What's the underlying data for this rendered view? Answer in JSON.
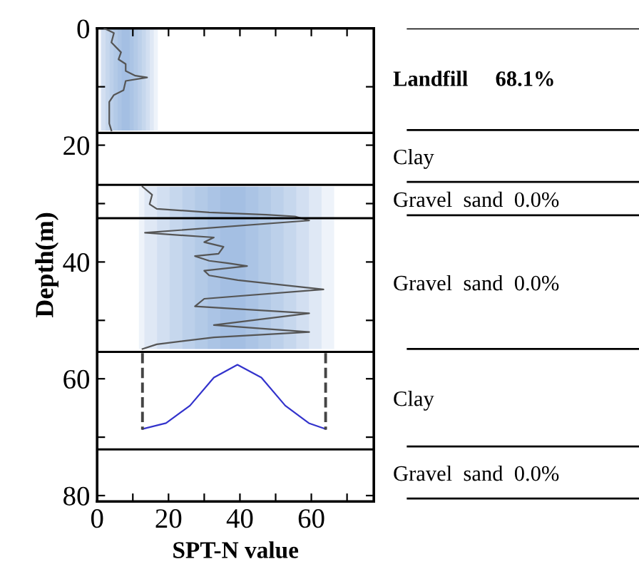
{
  "chart_data": {
    "type": "line",
    "xlabel": "SPT-N value",
    "ylabel": "Depth(m)",
    "xlim": [
      0,
      77.5
    ],
    "ylim": [
      81,
      0
    ],
    "xticks": [
      0,
      {
        "value": 10,
        "label": null
      },
      20,
      {
        "value": 30,
        "label": null
      },
      40,
      {
        "value": 50,
        "label": null
      },
      60,
      {
        "value": 70,
        "label": null
      }
    ],
    "yticks": [
      0,
      {
        "value": 10,
        "label": null
      },
      20,
      {
        "value": 30,
        "label": null
      },
      40,
      {
        "value": 50,
        "label": null
      },
      60,
      {
        "value": 70,
        "label": null
      },
      80
    ],
    "grid": false,
    "legend": false,
    "marker": "none",
    "series": [
      {
        "color": "#555555",
        "line_style": "solid",
        "x": [
          2,
          4.7,
          4,
          6.7,
          6,
          8,
          8,
          10.7,
          14,
          8,
          7.4,
          4.7,
          3.4,
          3.4,
          4
        ],
        "values": [
          0,
          0.8,
          2.4,
          4.1,
          5.3,
          6.1,
          7.3,
          8.1,
          8.4,
          9,
          10.6,
          11.4,
          12.6,
          16.3,
          17.5
        ]
      },
      {
        "color": "#555555",
        "line_style": "solid",
        "x": [
          12.7,
          15.4,
          14.7,
          16.7,
          31.4,
          47.4,
          55.4,
          59.4,
          13.4,
          32.7,
          30,
          35.4,
          34,
          27.4,
          31.4,
          36.7,
          42,
          30,
          31.4,
          39.4,
          63.4,
          30,
          27.4,
          59.4,
          32.7,
          59.4,
          32.7,
          16.7,
          12.7
        ],
        "values": [
          27.1,
          28.5,
          30.1,
          30.9,
          31.5,
          31.9,
          32.2,
          32.9,
          35,
          35.8,
          36.6,
          37.4,
          38.6,
          39,
          39.8,
          40.2,
          40.7,
          41.5,
          42.3,
          43.1,
          44.7,
          46.3,
          47.6,
          48.8,
          50.8,
          52,
          52.9,
          54.1,
          54.9
        ]
      },
      {
        "color": "#3333cc",
        "line_style": "solid",
        "x": [
          12.7,
          19.3,
          26,
          32.7,
          39.3,
          46,
          52.7,
          59.3,
          64
        ],
        "values": [
          68.6,
          67.6,
          64.6,
          59.8,
          57.6,
          59.8,
          64.6,
          67.6,
          68.6
        ]
      },
      {
        "color": "#444444",
        "line_style": "dashed",
        "x": [
          12.7,
          12.7
        ],
        "values": [
          55.6,
          68.7
        ]
      },
      {
        "color": "#444444",
        "line_style": "dashed",
        "x": [
          64,
          64
        ],
        "values": [
          55.6,
          68.7
        ]
      }
    ],
    "ref_lines": [
      {
        "axis": "y",
        "value": 17.9,
        "color": "#000000"
      },
      {
        "axis": "y",
        "value": 26.8,
        "color": "#000000"
      },
      {
        "axis": "y",
        "value": 32.5,
        "color": "#000000"
      },
      {
        "axis": "y",
        "value": 55.4,
        "color": "#000000"
      },
      {
        "axis": "y",
        "value": 72.1,
        "color": "#000000"
      }
    ],
    "annotations": [
      "Landfill     68.1%",
      "Clay",
      "Gravel  sand  0.0%",
      "Gravel  sand  0.0%",
      "Clay",
      "Gravel  sand  0.0%"
    ]
  }
}
